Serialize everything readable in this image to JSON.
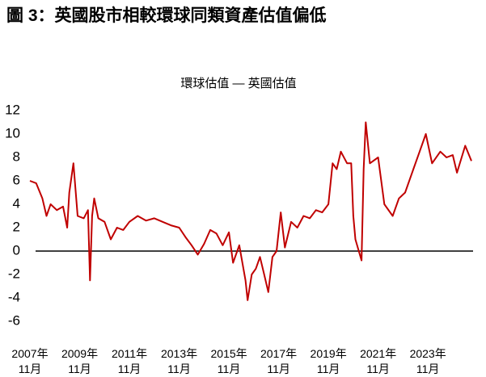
{
  "chart_data": {
    "type": "line",
    "title": "圖 3：英國股市相較環球同類資產估值偏低",
    "x": [
      "2007-11",
      "2008-02",
      "2008-05",
      "2008-07",
      "2008-09",
      "2008-12",
      "2009-03",
      "2009-05",
      "2009-06",
      "2009-08",
      "2009-10",
      "2010-01",
      "2010-03",
      "2010-04",
      "2010-05",
      "2010-06",
      "2010-08",
      "2010-11",
      "2011-02",
      "2011-05",
      "2011-08",
      "2011-11",
      "2012-03",
      "2012-07",
      "2012-11",
      "2013-03",
      "2013-07",
      "2013-11",
      "2014-02",
      "2014-05",
      "2014-08",
      "2014-11",
      "2015-02",
      "2015-05",
      "2015-08",
      "2015-11",
      "2016-01",
      "2016-04",
      "2016-07",
      "2016-08",
      "2016-10",
      "2016-12",
      "2017-02",
      "2017-04",
      "2017-06",
      "2017-08",
      "2017-10",
      "2017-12",
      "2018-02",
      "2018-05",
      "2018-08",
      "2018-11",
      "2019-02",
      "2019-05",
      "2019-08",
      "2019-11",
      "2020-01",
      "2020-03",
      "2020-05",
      "2020-08",
      "2020-10",
      "2020-11",
      "2020-12",
      "2021-03",
      "2021-04",
      "2021-05",
      "2021-07",
      "2021-11",
      "2022-02",
      "2022-06",
      "2022-09",
      "2022-12",
      "2023-04",
      "2023-07",
      "2023-10",
      "2024-01",
      "2024-05",
      "2024-08",
      "2024-11",
      "2025-01",
      "2025-05",
      "2025-08"
    ],
    "series": [
      {
        "name": "環球估值 — 英國估值",
        "color": "#c00000",
        "values": [
          6,
          5.8,
          4.5,
          3.0,
          4.0,
          3.5,
          3.8,
          2.0,
          5.0,
          7.5,
          3.0,
          2.8,
          3.5,
          -2.5,
          3.0,
          4.5,
          2.8,
          2.5,
          1.0,
          2.0,
          1.8,
          2.5,
          3.0,
          2.6,
          2.8,
          2.5,
          2.2,
          2.0,
          1.2,
          0.5,
          -0.3,
          0.6,
          1.8,
          1.5,
          0.5,
          1.6,
          -1.0,
          0.5,
          -2.5,
          -4.2,
          -2.0,
          -1.5,
          -0.5,
          -2.0,
          -3.5,
          -0.5,
          0.0,
          3.3,
          0.3,
          2.5,
          2.0,
          3.0,
          2.8,
          3.5,
          3.3,
          4.0,
          7.5,
          7.0,
          8.5,
          7.5,
          7.5,
          3.0,
          1.0,
          -0.8,
          7.0,
          11.0,
          7.5,
          8.0,
          4.0,
          3.0,
          4.5,
          5.0,
          7.0,
          8.5,
          10.0,
          7.5,
          8.5,
          8.0,
          8.2,
          6.7,
          9.0,
          7.7
        ]
      }
    ],
    "xlim": [
      "2007-11",
      "2025-08"
    ],
    "xticks": [
      {
        "value": "2007-11",
        "label": "2007年\n11月"
      },
      {
        "value": "2009-11",
        "label": "2009年\n11月"
      },
      {
        "value": "2011-11",
        "label": "2011年\n11月"
      },
      {
        "value": "2013-11",
        "label": "2013年\n11月"
      },
      {
        "value": "2015-11",
        "label": "2015年\n11月"
      },
      {
        "value": "2017-11",
        "label": "2017年\n11月"
      },
      {
        "value": "2019-11",
        "label": "2019年\n11月"
      },
      {
        "value": "2021-11",
        "label": "2021年\n11月"
      },
      {
        "value": "2023-11",
        "label": "2023年\n11月"
      }
    ],
    "ylim": [
      -6,
      12
    ],
    "yticks": [
      -6,
      -4,
      -2,
      0,
      2,
      4,
      6,
      8,
      10,
      12
    ],
    "grid": false
  }
}
